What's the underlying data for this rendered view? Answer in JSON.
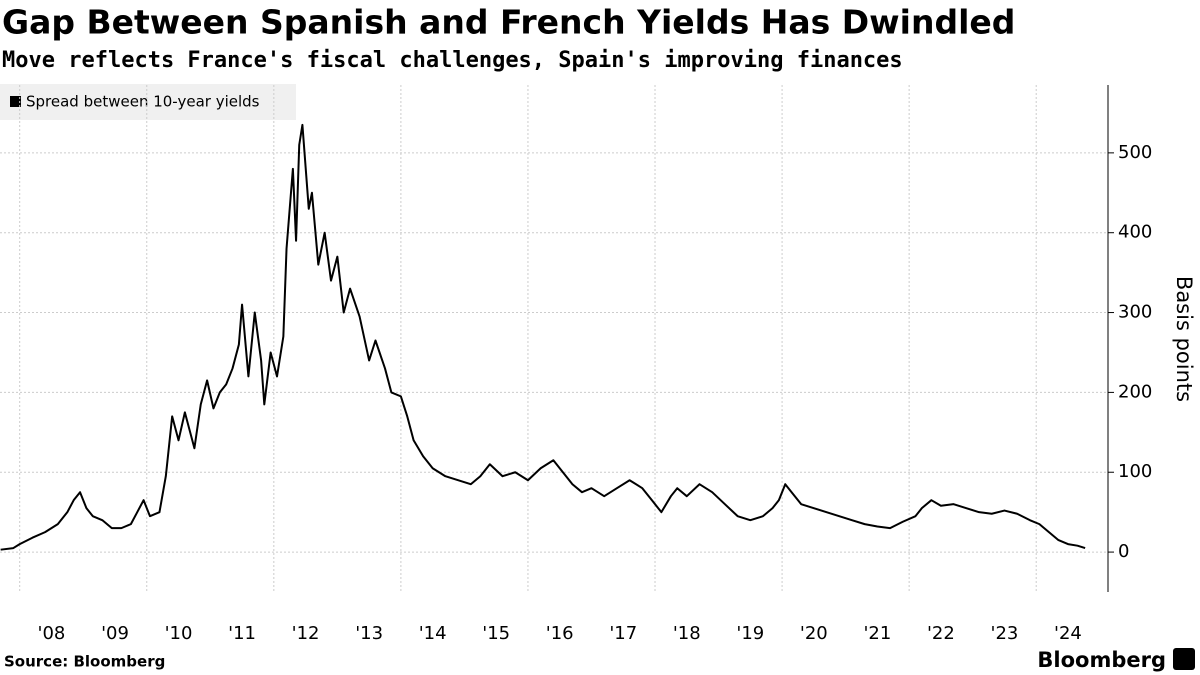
{
  "chart_data": {
    "type": "line",
    "title": "Gap Between Spanish and French Yields Has Dwindled",
    "subtitle": "Move reflects France's fiscal challenges, Spain's improving finances",
    "y_axis_label": "Basis points",
    "source": "Source: Bloomberg",
    "brand": "Bloomberg",
    "xlim": [
      2007.69,
      2025.13
    ],
    "ylim": [
      -50,
      585
    ],
    "yticks": [
      0,
      100,
      200,
      300,
      400,
      500
    ],
    "xticks": [
      {
        "value": 2008.5,
        "label": "'08"
      },
      {
        "value": 2009.5,
        "label": "'09"
      },
      {
        "value": 2010.5,
        "label": "'10"
      },
      {
        "value": 2011.5,
        "label": "'11"
      },
      {
        "value": 2012.5,
        "label": "'12"
      },
      {
        "value": 2013.5,
        "label": "'13"
      },
      {
        "value": 2014.5,
        "label": "'14"
      },
      {
        "value": 2015.5,
        "label": "'15"
      },
      {
        "value": 2016.5,
        "label": "'16"
      },
      {
        "value": 2017.5,
        "label": "'17"
      },
      {
        "value": 2018.5,
        "label": "'18"
      },
      {
        "value": 2019.5,
        "label": "'19"
      },
      {
        "value": 2020.5,
        "label": "'20"
      },
      {
        "value": 2021.5,
        "label": "'21"
      },
      {
        "value": 2022.5,
        "label": "'22"
      },
      {
        "value": 2023.5,
        "label": "'23"
      },
      {
        "value": 2024.5,
        "label": "'24"
      }
    ],
    "xgrid": [
      2008,
      2010,
      2012,
      2014,
      2016,
      2018,
      2020,
      2022,
      2024
    ],
    "grid": true,
    "legend": "top-left",
    "x": [
      2007.7,
      2007.9,
      2008.0,
      2008.2,
      2008.4,
      2008.6,
      2008.75,
      2008.85,
      2008.95,
      2009.05,
      2009.15,
      2009.3,
      2009.45,
      2009.6,
      2009.75,
      2009.85,
      2009.95,
      2010.05,
      2010.2,
      2010.3,
      2010.4,
      2010.5,
      2010.6,
      2010.75,
      2010.85,
      2010.95,
      2011.05,
      2011.15,
      2011.25,
      2011.35,
      2011.45,
      2011.5,
      2011.6,
      2011.7,
      2011.8,
      2011.85,
      2011.95,
      2012.05,
      2012.15,
      2012.2,
      2012.3,
      2012.35,
      2012.4,
      2012.45,
      2012.55,
      2012.6,
      2012.7,
      2012.8,
      2012.9,
      2013.0,
      2013.1,
      2013.2,
      2013.35,
      2013.5,
      2013.6,
      2013.75,
      2013.85,
      2014.0,
      2014.1,
      2014.2,
      2014.35,
      2014.5,
      2014.7,
      2014.9,
      2015.1,
      2015.25,
      2015.4,
      2015.6,
      2015.8,
      2016.0,
      2016.2,
      2016.4,
      2016.55,
      2016.7,
      2016.85,
      2017.0,
      2017.2,
      2017.4,
      2017.6,
      2017.8,
      2017.95,
      2018.1,
      2018.25,
      2018.35,
      2018.5,
      2018.7,
      2018.9,
      2019.1,
      2019.3,
      2019.5,
      2019.7,
      2019.85,
      2019.95,
      2020.05,
      2020.15,
      2020.3,
      2020.5,
      2020.7,
      2020.9,
      2021.1,
      2021.3,
      2021.5,
      2021.7,
      2021.9,
      2022.1,
      2022.2,
      2022.35,
      2022.5,
      2022.7,
      2022.9,
      2023.1,
      2023.3,
      2023.5,
      2023.7,
      2023.9,
      2024.05,
      2024.2,
      2024.35,
      2024.5,
      2024.65,
      2024.77
    ],
    "series": [
      {
        "name": "Spread between 10-year yields",
        "color": "#000000",
        "values": [
          3,
          5,
          10,
          18,
          25,
          35,
          50,
          65,
          75,
          55,
          45,
          40,
          30,
          30,
          35,
          50,
          65,
          45,
          50,
          95,
          170,
          140,
          175,
          130,
          185,
          215,
          180,
          200,
          210,
          230,
          260,
          310,
          220,
          300,
          240,
          185,
          250,
          220,
          270,
          380,
          480,
          390,
          510,
          535,
          430,
          450,
          360,
          400,
          340,
          370,
          300,
          330,
          295,
          240,
          265,
          230,
          200,
          195,
          170,
          140,
          120,
          105,
          95,
          90,
          85,
          95,
          110,
          95,
          100,
          90,
          105,
          115,
          100,
          85,
          75,
          80,
          70,
          80,
          90,
          80,
          65,
          50,
          70,
          80,
          70,
          85,
          75,
          60,
          45,
          40,
          45,
          55,
          65,
          85,
          75,
          60,
          55,
          50,
          45,
          40,
          35,
          32,
          30,
          38,
          45,
          55,
          65,
          58,
          60,
          55,
          50,
          48,
          52,
          48,
          40,
          35,
          25,
          15,
          10,
          8,
          5
        ]
      }
    ]
  }
}
